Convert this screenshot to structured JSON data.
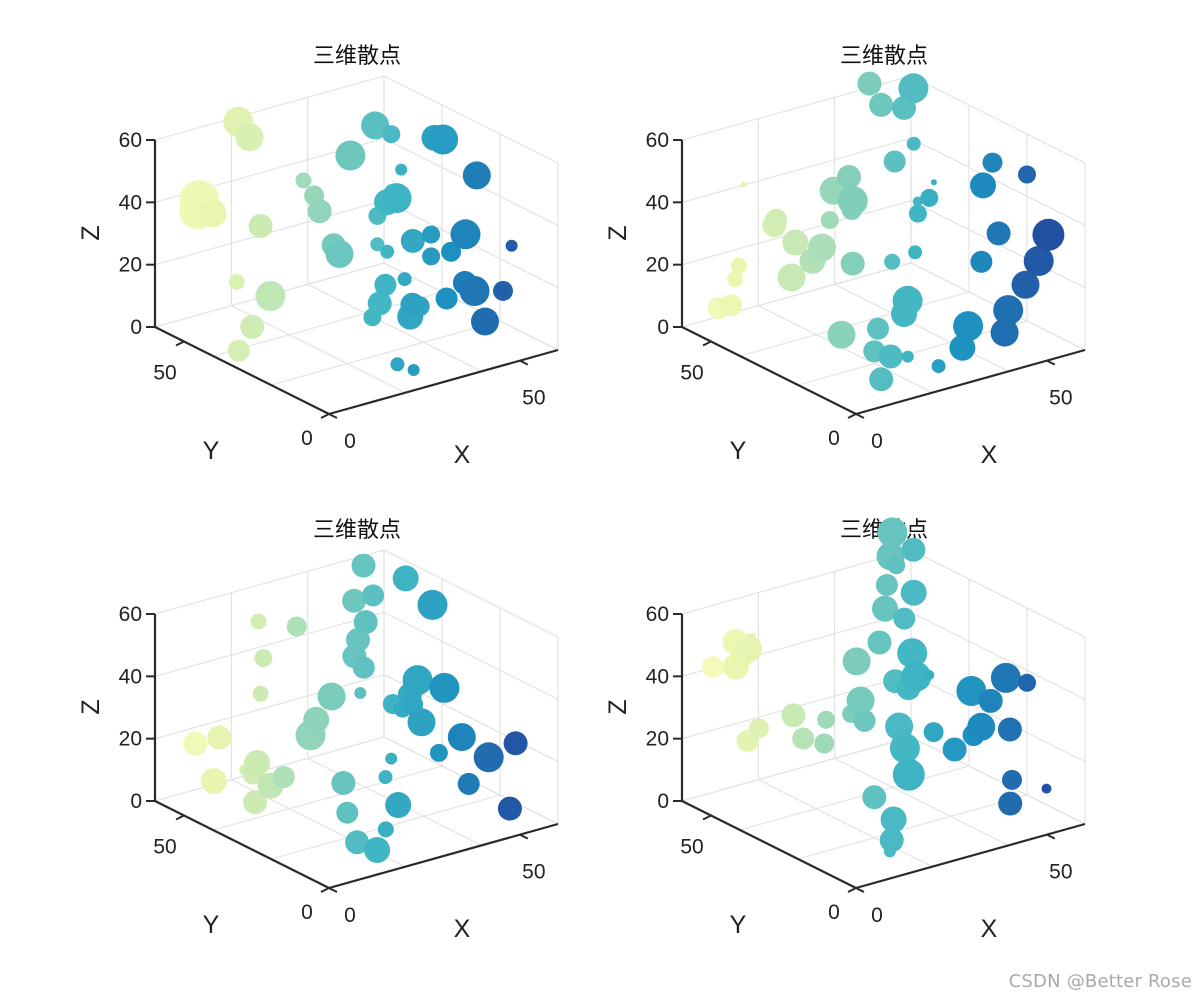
{
  "watermark": "CSDN @Better Rose",
  "chart_data": [
    {
      "type": "scatter3d",
      "title": "三维散点",
      "xlabel": "X",
      "ylabel": "Y",
      "zlabel": "Z",
      "xlim": [
        0,
        60
      ],
      "ylim": [
        0,
        60
      ],
      "zlim": [
        0,
        60
      ],
      "xticks": [
        0,
        50
      ],
      "yticks": [
        0,
        50
      ],
      "zticks": [
        0,
        20,
        40,
        60
      ],
      "grid": true,
      "points": [
        [
          2,
          48,
          42,
          18
        ],
        [
          4,
          50,
          44,
          20
        ],
        [
          6,
          48,
          40,
          14
        ],
        [
          10,
          45,
          18,
          8
        ],
        [
          12,
          36,
          17,
          15
        ],
        [
          8,
          37,
          8,
          12
        ],
        [
          3,
          35,
          3,
          11
        ],
        [
          18,
          55,
          62,
          15
        ],
        [
          21,
          55,
          56,
          14
        ],
        [
          14,
          42,
          36,
          12
        ],
        [
          24,
          30,
          32,
          12
        ],
        [
          21,
          24,
          33,
          14
        ],
        [
          26,
          43,
          46,
          8
        ],
        [
          28,
          42,
          41,
          10
        ],
        [
          31,
          44,
          34,
          12
        ],
        [
          33,
          24,
          19,
          11
        ],
        [
          30,
          22,
          15,
          12
        ],
        [
          22,
          14,
          17,
          9
        ],
        [
          35,
          26,
          28,
          7
        ],
        [
          35,
          20,
          22,
          7
        ],
        [
          34,
          16,
          16,
          12
        ],
        [
          29,
          9,
          0,
          6
        ],
        [
          24,
          8,
          4,
          7
        ],
        [
          38,
          22,
          8,
          13
        ],
        [
          42,
          24,
          9,
          10
        ],
        [
          46,
          20,
          12,
          11
        ],
        [
          47,
          15,
          19,
          12
        ],
        [
          48,
          13,
          17,
          15
        ],
        [
          50,
          12,
          7,
          14
        ],
        [
          37,
          32,
          36,
          9
        ],
        [
          38,
          30,
          41,
          13
        ],
        [
          42,
          32,
          40,
          15
        ],
        [
          44,
          29,
          27,
          12
        ],
        [
          40,
          36,
          24,
          7
        ],
        [
          44,
          42,
          58,
          14
        ],
        [
          45,
          38,
          39,
          5
        ],
        [
          49,
          43,
          53,
          9
        ],
        [
          55,
          36,
          53,
          13
        ],
        [
          58,
          37,
          51,
          15
        ],
        [
          60,
          28,
          43,
          14
        ],
        [
          54,
          24,
          28,
          15
        ],
        [
          51,
          25,
          23,
          10
        ],
        [
          57,
          15,
          13,
          10
        ],
        [
          60,
          16,
          26,
          6
        ],
        [
          44,
          33,
          48,
          6
        ],
        [
          45,
          24,
          24,
          9
        ],
        [
          45,
          24,
          31,
          9
        ],
        [
          36,
          40,
          52,
          15
        ]
      ]
    },
    {
      "type": "scatter3d",
      "title": "三维散点",
      "xlabel": "X",
      "ylabel": "Y",
      "zlabel": "Z",
      "xlim": [
        0,
        60
      ],
      "ylim": [
        0,
        60
      ],
      "zlim": [
        0,
        60
      ],
      "xticks": [
        0,
        50
      ],
      "yticks": [
        0,
        50
      ],
      "zticks": [
        0,
        20,
        40,
        60
      ],
      "grid": true,
      "points": [
        [
          2,
          50,
          10,
          11
        ],
        [
          3,
          47,
          12,
          11
        ],
        [
          4,
          47,
          20,
          8
        ],
        [
          5,
          47,
          24,
          8
        ],
        [
          12,
          44,
          36,
          12
        ],
        [
          11,
          42,
          39,
          11
        ],
        [
          16,
          42,
          30,
          13
        ],
        [
          12,
          38,
          22,
          14
        ],
        [
          19,
          40,
          24,
          13
        ],
        [
          23,
          42,
          26,
          14
        ],
        [
          28,
          38,
          21,
          12
        ],
        [
          25,
          34,
          44,
          15
        ],
        [
          27,
          37,
          39,
          10
        ],
        [
          30,
          27,
          26,
          8
        ],
        [
          27,
          19,
          14,
          13
        ],
        [
          31,
          23,
          15,
          15
        ],
        [
          19,
          30,
          5,
          14
        ],
        [
          24,
          24,
          8,
          11
        ],
        [
          20,
          20,
          4,
          11
        ],
        [
          22,
          17,
          3,
          12
        ],
        [
          18,
          15,
          -2,
          12
        ],
        [
          28,
          19,
          0,
          6
        ],
        [
          30,
          11,
          0,
          7
        ],
        [
          37,
          12,
          3,
          13
        ],
        [
          40,
          14,
          8,
          15
        ],
        [
          45,
          8,
          7,
          14
        ],
        [
          49,
          12,
          11,
          15
        ],
        [
          52,
          10,
          19,
          14
        ],
        [
          57,
          12,
          24,
          15
        ],
        [
          58,
          10,
          33,
          16
        ],
        [
          45,
          16,
          26,
          11
        ],
        [
          48,
          14,
          35,
          12
        ],
        [
          50,
          22,
          46,
          13
        ],
        [
          54,
          24,
          51,
          10
        ],
        [
          60,
          20,
          47,
          9
        ],
        [
          36,
          27,
          27,
          7
        ],
        [
          39,
          30,
          37,
          9
        ],
        [
          42,
          30,
          41,
          9
        ],
        [
          39,
          38,
          50,
          11
        ],
        [
          40,
          44,
          65,
          12
        ],
        [
          40,
          48,
          70,
          12
        ],
        [
          46,
          44,
          62,
          12
        ],
        [
          50,
          46,
          66,
          15
        ],
        [
          44,
          38,
          54,
          7
        ],
        [
          42,
          34,
          38,
          5
        ],
        [
          20,
          34,
          49,
          14
        ],
        [
          24,
          34,
          52,
          12
        ],
        [
          47,
          35,
          42,
          3
        ],
        [
          22,
          38,
          37,
          9
        ],
        [
          10,
          52,
          46,
          3
        ]
      ]
    },
    {
      "type": "scatter3d",
      "title": "三维散点",
      "xlabel": "X",
      "ylabel": "Y",
      "zlabel": "Z",
      "xlim": [
        0,
        60
      ],
      "ylim": [
        0,
        60
      ],
      "zlim": [
        0,
        60
      ],
      "xticks": [
        0,
        50
      ],
      "yticks": [
        0,
        50
      ],
      "zticks": [
        0,
        20,
        40,
        60
      ],
      "grid": true,
      "points": [
        [
          3,
          50,
          22,
          12
        ],
        [
          7,
          47,
          24,
          12
        ],
        [
          4,
          45,
          12,
          13
        ],
        [
          9,
          38,
          16,
          11
        ],
        [
          10,
          38,
          19,
          13
        ],
        [
          12,
          36,
          12,
          13
        ],
        [
          14,
          34,
          15,
          11
        ],
        [
          8,
          36,
          8,
          12
        ],
        [
          10,
          42,
          15,
          6
        ],
        [
          14,
          42,
          38,
          8
        ],
        [
          18,
          48,
          57,
          8
        ],
        [
          17,
          45,
          47,
          9
        ],
        [
          21,
          34,
          26,
          15
        ],
        [
          25,
          32,
          38,
          14
        ],
        [
          24,
          36,
          29,
          13
        ],
        [
          22,
          24,
          15,
          12
        ],
        [
          20,
          20,
          8,
          11
        ],
        [
          18,
          14,
          2,
          12
        ],
        [
          24,
          12,
          5,
          8
        ],
        [
          28,
          13,
          11,
          13
        ],
        [
          24,
          15,
          -3,
          13
        ],
        [
          30,
          20,
          16,
          7
        ],
        [
          33,
          22,
          20,
          6
        ],
        [
          38,
          28,
          33,
          10
        ],
        [
          40,
          24,
          34,
          11
        ],
        [
          44,
          26,
          26,
          14
        ],
        [
          44,
          20,
          19,
          9
        ],
        [
          50,
          20,
          22,
          14
        ],
        [
          54,
          16,
          16,
          15
        ],
        [
          58,
          12,
          21,
          12
        ],
        [
          48,
          15,
          10,
          11
        ],
        [
          55,
          10,
          2,
          12
        ],
        [
          50,
          26,
          35,
          15
        ],
        [
          38,
          38,
          40,
          11
        ],
        [
          34,
          36,
          46,
          12
        ],
        [
          38,
          40,
          48,
          12
        ],
        [
          40,
          44,
          58,
          12
        ],
        [
          40,
          40,
          53,
          12
        ],
        [
          45,
          44,
          58,
          11
        ],
        [
          52,
          42,
          62,
          13
        ],
        [
          56,
          38,
          54,
          15
        ],
        [
          44,
          46,
          67,
          12
        ],
        [
          46,
          30,
          37,
          15
        ],
        [
          44,
          30,
          33,
          12
        ],
        [
          31,
          30,
          38,
          6
        ],
        [
          28,
          36,
          37,
          5
        ],
        [
          28,
          48,
          52,
          10
        ],
        [
          36,
          22,
          35,
          9
        ]
      ]
    },
    {
      "type": "scatter3d",
      "title": "三维散点",
      "xlabel": "X",
      "ylabel": "Y",
      "zlabel": "Z",
      "xlim": [
        0,
        60
      ],
      "ylim": [
        0,
        60
      ],
      "zlim": [
        0,
        60
      ],
      "xticks": [
        0,
        50
      ],
      "yticks": [
        0,
        50
      ],
      "zticks": [
        0,
        20,
        40,
        60
      ],
      "grid": true,
      "points": [
        [
          2,
          52,
          46,
          11
        ],
        [
          5,
          48,
          47,
          13
        ],
        [
          8,
          52,
          52,
          13
        ],
        [
          10,
          50,
          50,
          13
        ],
        [
          8,
          50,
          48,
          11
        ],
        [
          12,
          52,
          52,
          5
        ],
        [
          5,
          44,
          25,
          11
        ],
        [
          8,
          44,
          28,
          10
        ],
        [
          14,
          40,
          32,
          12
        ],
        [
          12,
          34,
          28,
          11
        ],
        [
          18,
          34,
          32,
          9
        ],
        [
          16,
          32,
          26,
          10
        ],
        [
          20,
          28,
          36,
          9
        ],
        [
          22,
          26,
          34,
          11
        ],
        [
          24,
          30,
          38,
          14
        ],
        [
          20,
          20,
          13,
          12
        ],
        [
          22,
          16,
          7,
          13
        ],
        [
          20,
          14,
          2,
          12
        ],
        [
          18,
          12,
          0,
          6
        ],
        [
          26,
          16,
          20,
          16
        ],
        [
          28,
          20,
          26,
          15
        ],
        [
          28,
          22,
          32,
          14
        ],
        [
          32,
          24,
          42,
          12
        ],
        [
          34,
          24,
          45,
          15
        ],
        [
          36,
          28,
          50,
          15
        ],
        [
          30,
          26,
          44,
          12
        ],
        [
          26,
          34,
          48,
          14
        ],
        [
          32,
          34,
          52,
          12
        ],
        [
          38,
          40,
          58,
          13
        ],
        [
          40,
          36,
          56,
          11
        ],
        [
          44,
          38,
          62,
          13
        ],
        [
          40,
          42,
          64,
          11
        ],
        [
          44,
          46,
          70,
          14
        ],
        [
          46,
          48,
          76,
          15
        ],
        [
          50,
          46,
          70,
          12
        ],
        [
          44,
          44,
          68,
          9
        ],
        [
          50,
          26,
          34,
          15
        ],
        [
          52,
          22,
          32,
          12
        ],
        [
          48,
          20,
          26,
          14
        ],
        [
          46,
          20,
          24,
          11
        ],
        [
          56,
          22,
          38,
          15
        ],
        [
          60,
          20,
          36,
          9
        ],
        [
          54,
          18,
          24,
          12
        ],
        [
          50,
          12,
          12,
          10
        ],
        [
          48,
          10,
          6,
          12
        ],
        [
          56,
          8,
          9,
          5
        ],
        [
          36,
          30,
          38,
          6
        ],
        [
          42,
          30,
          40,
          5
        ],
        [
          34,
          18,
          30,
          10
        ],
        [
          38,
          16,
          24,
          12
        ]
      ]
    }
  ]
}
